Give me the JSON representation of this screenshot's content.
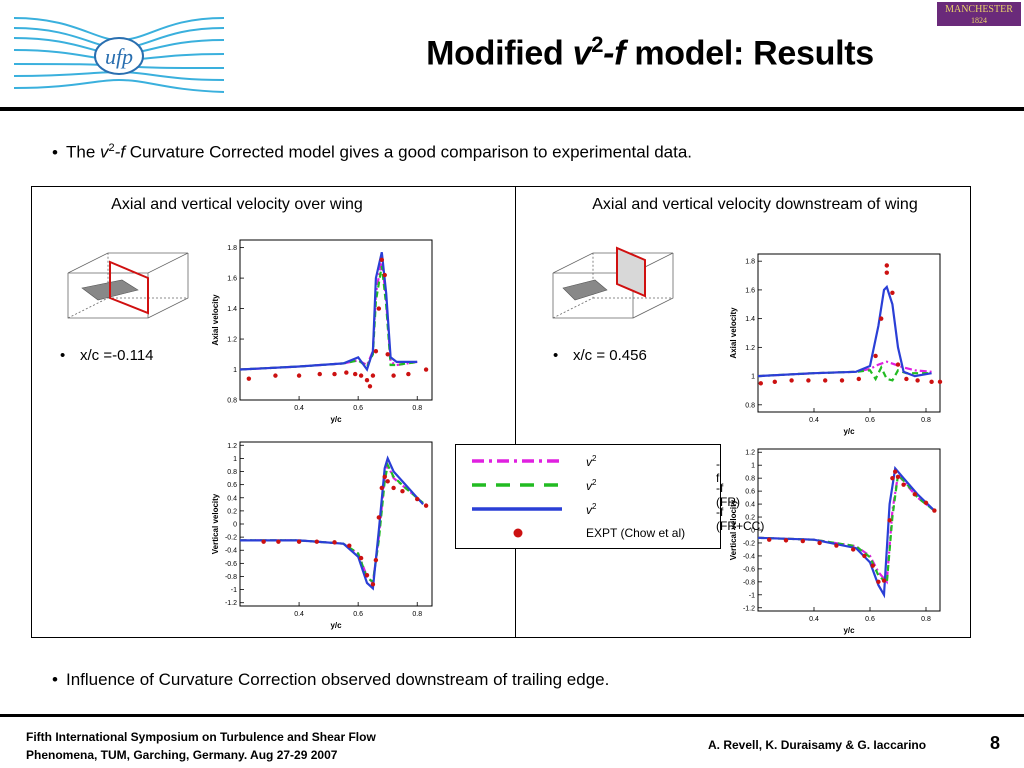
{
  "header": {
    "title_pre": "Modified ",
    "title_v": "v",
    "title_sup": "2",
    "title_f": "-f",
    "title_post": " model: Results",
    "left_logo_text": "ufp",
    "right_logo_text": "MANCHESTER",
    "right_logo_year": "1824"
  },
  "bullets": {
    "b1_pre": "The ",
    "b1_v": "v",
    "b1_sup": "2",
    "b1_f": "-f",
    "b1_post": " Curvature Corrected model gives a good comparison to experimental data.",
    "b2": "Influence of Curvature Correction observed downstream of trailing edge."
  },
  "panels": {
    "left_title": "Axial and vertical velocity over wing",
    "right_title": "Axial and vertical velocity downstream of wing",
    "left_xc": "x/c =-0.114",
    "right_xc": "x/c = 0.456"
  },
  "legend": {
    "items": [
      {
        "pre": "v",
        "sup": "2",
        "post": "-f",
        "color": "#e020e0",
        "style": "dashdot"
      },
      {
        "pre": "v",
        "sup": "2",
        "post": "-f (FR)",
        "color": "#22bb22",
        "style": "dashed"
      },
      {
        "pre": "v",
        "sup": "2",
        "post": "-f (FR+CC)",
        "color": "#2a3fd6",
        "style": "solid"
      },
      {
        "pre": "",
        "sup": "",
        "post": "EXPT (Chow et al)",
        "color": "#cc1111",
        "style": "dot"
      }
    ]
  },
  "footer": {
    "line1": "Fifth International Symposium on Turbulence and Shear Flow",
    "line2": "Phenomena, TUM, Garching, Germany. Aug 27-29 2007",
    "authors": "A. Revell, K. Duraisamy & G. Iaccarino",
    "page": "8"
  },
  "chart_data": [
    {
      "type": "line",
      "id": "axial-over-wing",
      "xlabel": "y/c",
      "ylabel": "Axial velocity",
      "xlim": [
        0.2,
        0.85
      ],
      "ylim": [
        0.8,
        1.85
      ],
      "xticks": [
        0.4,
        0.6,
        0.8
      ],
      "yticks": [
        0.8,
        1,
        1.2,
        1.4,
        1.6,
        1.8
      ],
      "series": [
        {
          "style": "v2f",
          "x": [
            0.2,
            0.4,
            0.55,
            0.6,
            0.63,
            0.65,
            0.66,
            0.68,
            0.695,
            0.71,
            0.73,
            0.8
          ],
          "y": [
            1.0,
            1.02,
            1.04,
            1.06,
            1.03,
            1.12,
            1.5,
            1.72,
            1.45,
            1.05,
            1.03,
            1.05
          ]
        },
        {
          "style": "fr",
          "x": [
            0.2,
            0.4,
            0.55,
            0.6,
            0.63,
            0.65,
            0.66,
            0.68,
            0.695,
            0.71,
            0.73,
            0.8
          ],
          "y": [
            1.0,
            1.02,
            1.04,
            1.06,
            1.02,
            1.1,
            1.45,
            1.68,
            1.42,
            1.03,
            1.03,
            1.05
          ]
        },
        {
          "style": "frcc",
          "x": [
            0.2,
            0.4,
            0.55,
            0.6,
            0.63,
            0.65,
            0.66,
            0.68,
            0.695,
            0.71,
            0.73,
            0.8
          ],
          "y": [
            1.0,
            1.02,
            1.04,
            1.08,
            1.0,
            1.12,
            1.6,
            1.77,
            1.5,
            1.08,
            1.05,
            1.05
          ]
        },
        {
          "style": "expt",
          "x": [
            0.23,
            0.32,
            0.4,
            0.47,
            0.52,
            0.56,
            0.59,
            0.61,
            0.63,
            0.64,
            0.65,
            0.66,
            0.67,
            0.68,
            0.69,
            0.7,
            0.72,
            0.77,
            0.83
          ],
          "y": [
            0.94,
            0.96,
            0.96,
            0.97,
            0.97,
            0.98,
            0.97,
            0.96,
            0.93,
            0.89,
            0.96,
            1.12,
            1.4,
            1.72,
            1.62,
            1.1,
            0.96,
            0.97,
            1.0
          ]
        }
      ]
    },
    {
      "type": "line",
      "id": "vertical-over-wing",
      "xlabel": "y/c",
      "ylabel": "Vertical velocity",
      "xlim": [
        0.2,
        0.85
      ],
      "ylim": [
        -1.25,
        1.25
      ],
      "xticks": [
        0.4,
        0.6,
        0.8
      ],
      "yticks": [
        -1.2,
        -1,
        -0.8,
        -0.6,
        -0.4,
        -0.2,
        0,
        0.2,
        0.4,
        0.6,
        0.8,
        1,
        1.2
      ],
      "series": [
        {
          "style": "v2f",
          "x": [
            0.2,
            0.4,
            0.55,
            0.6,
            0.63,
            0.65,
            0.67,
            0.69,
            0.7,
            0.72,
            0.76,
            0.82
          ],
          "y": [
            -0.25,
            -0.25,
            -0.3,
            -0.45,
            -0.8,
            -0.9,
            -0.2,
            0.7,
            0.9,
            0.7,
            0.55,
            0.32
          ]
        },
        {
          "style": "fr",
          "x": [
            0.2,
            0.4,
            0.55,
            0.6,
            0.63,
            0.65,
            0.67,
            0.69,
            0.7,
            0.72,
            0.76,
            0.82
          ],
          "y": [
            -0.25,
            -0.25,
            -0.3,
            -0.45,
            -0.82,
            -0.88,
            -0.25,
            0.65,
            0.9,
            0.72,
            0.55,
            0.32
          ]
        },
        {
          "style": "frcc",
          "x": [
            0.2,
            0.4,
            0.55,
            0.6,
            0.63,
            0.65,
            0.67,
            0.69,
            0.7,
            0.72,
            0.76,
            0.82
          ],
          "y": [
            -0.25,
            -0.25,
            -0.3,
            -0.5,
            -0.9,
            -0.98,
            -0.1,
            0.85,
            1.0,
            0.8,
            0.6,
            0.3
          ]
        },
        {
          "style": "expt",
          "x": [
            0.28,
            0.33,
            0.4,
            0.46,
            0.52,
            0.57,
            0.61,
            0.63,
            0.65,
            0.66,
            0.67,
            0.68,
            0.69,
            0.7,
            0.72,
            0.75,
            0.8,
            0.83
          ],
          "y": [
            -0.27,
            -0.27,
            -0.27,
            -0.27,
            -0.28,
            -0.33,
            -0.52,
            -0.78,
            -0.92,
            -0.55,
            0.1,
            0.55,
            0.72,
            0.65,
            0.55,
            0.5,
            0.38,
            0.28
          ]
        }
      ]
    },
    {
      "type": "line",
      "id": "axial-downstream",
      "xlabel": "y/c",
      "ylabel": "Axial velocity",
      "xlim": [
        0.2,
        0.85
      ],
      "ylim": [
        0.75,
        1.85
      ],
      "xticks": [
        0.4,
        0.6,
        0.8
      ],
      "yticks": [
        0.8,
        1,
        1.2,
        1.4,
        1.6,
        1.8
      ],
      "series": [
        {
          "style": "v2f",
          "x": [
            0.2,
            0.4,
            0.55,
            0.6,
            0.63,
            0.66,
            0.69,
            0.72,
            0.76,
            0.82
          ],
          "y": [
            1.0,
            1.02,
            1.03,
            1.05,
            1.08,
            1.1,
            1.08,
            1.06,
            1.04,
            1.03
          ]
        },
        {
          "style": "fr",
          "x": [
            0.2,
            0.4,
            0.55,
            0.6,
            0.62,
            0.64,
            0.66,
            0.68,
            0.7,
            0.73,
            0.78,
            0.82
          ],
          "y": [
            1.0,
            1.02,
            1.03,
            1.04,
            0.98,
            1.06,
            0.98,
            0.97,
            1.04,
            1.02,
            1.02,
            1.02
          ]
        },
        {
          "style": "frcc",
          "x": [
            0.2,
            0.4,
            0.55,
            0.6,
            0.63,
            0.65,
            0.66,
            0.68,
            0.7,
            0.72,
            0.76,
            0.82
          ],
          "y": [
            1.0,
            1.02,
            1.03,
            1.07,
            1.35,
            1.6,
            1.62,
            1.5,
            1.2,
            1.03,
            1.0,
            1.02
          ]
        },
        {
          "style": "expt",
          "x": [
            0.21,
            0.26,
            0.32,
            0.38,
            0.44,
            0.5,
            0.56,
            0.62,
            0.64,
            0.66,
            0.66,
            0.68,
            0.7,
            0.73,
            0.77,
            0.82,
            0.85
          ],
          "y": [
            0.95,
            0.96,
            0.97,
            0.97,
            0.97,
            0.97,
            0.98,
            1.14,
            1.4,
            1.72,
            1.77,
            1.58,
            1.08,
            0.98,
            0.97,
            0.96,
            0.96
          ]
        }
      ]
    },
    {
      "type": "line",
      "id": "vertical-downstream",
      "xlabel": "y/c",
      "ylabel": "Vertical velocity",
      "xlim": [
        0.2,
        0.85
      ],
      "ylim": [
        -1.25,
        1.25
      ],
      "xticks": [
        0.4,
        0.6,
        0.8
      ],
      "yticks": [
        -1.2,
        -1,
        -0.8,
        -0.6,
        -0.4,
        -0.2,
        0,
        0.2,
        0.4,
        0.6,
        0.8,
        1,
        1.2
      ],
      "series": [
        {
          "style": "v2f",
          "x": [
            0.2,
            0.4,
            0.55,
            0.6,
            0.63,
            0.66,
            0.68,
            0.7,
            0.73,
            0.77,
            0.83
          ],
          "y": [
            -0.12,
            -0.15,
            -0.25,
            -0.4,
            -0.65,
            -0.8,
            0.3,
            0.85,
            0.7,
            0.5,
            0.3
          ]
        },
        {
          "style": "fr",
          "x": [
            0.2,
            0.4,
            0.55,
            0.6,
            0.63,
            0.66,
            0.68,
            0.7,
            0.73,
            0.77,
            0.83
          ],
          "y": [
            -0.12,
            -0.15,
            -0.25,
            -0.42,
            -0.7,
            -0.82,
            0.2,
            0.85,
            0.72,
            0.5,
            0.3
          ]
        },
        {
          "style": "frcc",
          "x": [
            0.2,
            0.4,
            0.55,
            0.6,
            0.63,
            0.65,
            0.67,
            0.69,
            0.72,
            0.77,
            0.83
          ],
          "y": [
            -0.12,
            -0.15,
            -0.28,
            -0.5,
            -0.85,
            -1.0,
            0.4,
            0.95,
            0.8,
            0.55,
            0.3
          ]
        },
        {
          "style": "expt",
          "x": [
            0.24,
            0.3,
            0.36,
            0.42,
            0.48,
            0.54,
            0.58,
            0.61,
            0.63,
            0.65,
            0.67,
            0.68,
            0.69,
            0.7,
            0.72,
            0.76,
            0.8,
            0.83
          ],
          "y": [
            -0.15,
            -0.16,
            -0.17,
            -0.2,
            -0.24,
            -0.3,
            -0.4,
            -0.55,
            -0.8,
            -0.78,
            0.15,
            0.8,
            0.9,
            0.82,
            0.7,
            0.55,
            0.42,
            0.3
          ]
        }
      ]
    }
  ]
}
